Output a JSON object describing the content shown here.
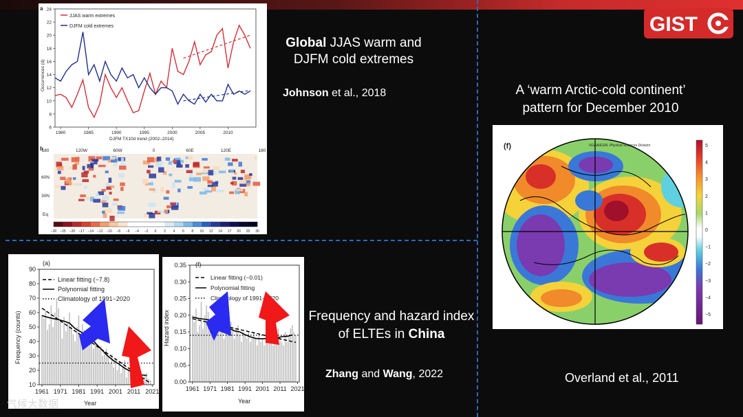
{
  "slide": {
    "title_bold": "Global",
    "title_rest": " JJAS warm and",
    "title_line2": "DJFM cold extremes",
    "cite1_bold": "Johnson",
    "cite1_rest": " et al., 2018",
    "arctic_line1": "A ‘warm Arctic-cold continent’",
    "arctic_line2": "pattern for December 2010",
    "china_line1": "Frequency and hazard index",
    "china_line2_pre": "of ELTEs in ",
    "china_line2_bold": "China",
    "cite2_bold1": "Zhang",
    "cite2_mid": " and ",
    "cite2_bold2": "Wang",
    "cite2_rest": ", 2022",
    "cite3": "Overland et al., 2011",
    "logo_text": "GIST",
    "watermark": "气候大数据"
  },
  "fig_a": {
    "panel_letter": "a",
    "legend": [
      "JJAS warm extremes",
      "DJFM cold extremes"
    ],
    "ylabel": "Occurrences (d)",
    "xlabel": "DJFM TX10d trend (2002–2014)",
    "colors": {
      "warm": "#d0303a",
      "cold": "#1f2f8a"
    }
  },
  "fig_b": {
    "panel_letter": "b",
    "top_ticks": [
      "180",
      "120W",
      "60W",
      "0",
      "60E",
      "120E",
      "180"
    ],
    "lat_ticks": [
      "60N",
      "30N",
      "Eq"
    ],
    "colorbar_ticks": [
      "−30",
      "−25",
      "−20",
      "−17",
      "−14",
      "−12",
      "−10",
      "−8",
      "−6",
      "−4",
      "−2",
      "0",
      "2",
      "4",
      "6",
      "8",
      "10",
      "12",
      "14",
      "17",
      "20",
      "25",
      "30"
    ]
  },
  "fig_f_map": {
    "panel_letter": "(f)",
    "header": "NOAA/ESRL Physical Sciences Division",
    "colorbar_ticks": [
      "5",
      "4",
      "3",
      "2",
      "1",
      "0",
      "−1",
      "−2",
      "−3",
      "−4",
      "−5"
    ]
  },
  "fig_freq": {
    "panel_letter": "(a)",
    "legend": [
      "Linear fitting (−7.8)",
      "Polynomial fitting",
      "Climatology of 1991−2020"
    ],
    "ylabel": "Frequency (counts)",
    "xlabel": "Year"
  },
  "fig_hazard": {
    "panel_letter": "(f)",
    "legend": [
      "Linear fitting (−0.01)",
      "Polynomial fitting",
      "Climatology of 1991−2020"
    ],
    "ylabel": "Hazard index",
    "xlabel": "Year"
  },
  "chart_data": [
    {
      "type": "line",
      "x": [
        1979,
        1980,
        1981,
        1982,
        1983,
        1984,
        1985,
        1986,
        1987,
        1988,
        1989,
        1990,
        1991,
        1992,
        1993,
        1994,
        1995,
        1996,
        1997,
        1998,
        1999,
        2000,
        2001,
        2002,
        2003,
        2004,
        2005,
        2006,
        2007,
        2008,
        2009,
        2010,
        2011,
        2012,
        2013,
        2014
      ],
      "series": [
        {
          "name": "JJAS warm extremes",
          "values": [
            10.8,
            11,
            10.5,
            9,
            11,
            13.2,
            9,
            7.5,
            9.5,
            14,
            12,
            10.5,
            12,
            10,
            8.2,
            8.5,
            11.5,
            14.2,
            11,
            13,
            12,
            18,
            14.5,
            14,
            16,
            19,
            15.5,
            17,
            17.5,
            20,
            21,
            15,
            19,
            21.5,
            20,
            18
          ]
        },
        {
          "name": "DJFM cold extremes",
          "values": [
            13.5,
            13,
            14.5,
            15.5,
            16,
            20.5,
            14,
            15.5,
            13,
            16,
            14,
            13,
            15,
            13.5,
            14,
            12,
            13.5,
            12,
            11,
            12,
            12,
            11.5,
            9.5,
            11,
            10,
            9.5,
            11,
            9.8,
            11,
            10,
            10,
            12.5,
            11,
            11.5,
            11,
            11.5
          ]
        }
      ],
      "xticks": [
        1980,
        1985,
        1990,
        1995,
        2000,
        2005,
        2010
      ],
      "yticks": [
        6,
        8,
        10,
        12,
        14,
        16,
        18,
        20,
        22,
        24
      ],
      "xlim": [
        1979,
        2015
      ],
      "ylim": [
        6,
        24
      ]
    },
    {
      "type": "bar",
      "x": [
        1961,
        1962,
        1963,
        1964,
        1965,
        1966,
        1967,
        1968,
        1969,
        1970,
        1971,
        1972,
        1973,
        1974,
        1975,
        1976,
        1977,
        1978,
        1979,
        1980,
        1981,
        1982,
        1983,
        1984,
        1985,
        1986,
        1987,
        1988,
        1989,
        1990,
        1991,
        1992,
        1993,
        1994,
        1995,
        1996,
        1997,
        1998,
        1999,
        2000,
        2001,
        2002,
        2003,
        2004,
        2005,
        2006,
        2007,
        2008,
        2009,
        2010,
        2011,
        2012,
        2013,
        2014,
        2015,
        2016,
        2017,
        2018,
        2019,
        2020
      ],
      "values": [
        58,
        56,
        62,
        48,
        52,
        65,
        50,
        60,
        70,
        63,
        55,
        42,
        57,
        47,
        53,
        60,
        52,
        45,
        40,
        50,
        58,
        44,
        52,
        48,
        38,
        45,
        46,
        40,
        35,
        42,
        38,
        35,
        37,
        30,
        32,
        35,
        30,
        25,
        31,
        22,
        28,
        20,
        25,
        18,
        22,
        27,
        15,
        20,
        19,
        25,
        18,
        15,
        14,
        20,
        12,
        15,
        17,
        18,
        14,
        13
      ],
      "xticks": [
        1961,
        1971,
        1981,
        1991,
        2001,
        2011,
        2021
      ],
      "yticks": [
        10,
        20,
        30,
        40,
        50,
        60,
        70,
        80,
        90
      ],
      "ylim": [
        10,
        90
      ],
      "climatology": 25
    },
    {
      "type": "bar",
      "x": [
        1961,
        1962,
        1963,
        1964,
        1965,
        1966,
        1967,
        1968,
        1969,
        1970,
        1971,
        1972,
        1973,
        1974,
        1975,
        1976,
        1977,
        1978,
        1979,
        1980,
        1981,
        1982,
        1983,
        1984,
        1985,
        1986,
        1987,
        1988,
        1989,
        1990,
        1991,
        1992,
        1993,
        1994,
        1995,
        1996,
        1997,
        1998,
        1999,
        2000,
        2001,
        2002,
        2003,
        2004,
        2005,
        2006,
        2007,
        2008,
        2009,
        2010,
        2011,
        2012,
        2013,
        2014,
        2015,
        2016,
        2017,
        2018,
        2019,
        2020
      ],
      "values": [
        0.2,
        0.18,
        0.22,
        0.15,
        0.17,
        0.24,
        0.16,
        0.2,
        0.23,
        0.21,
        0.19,
        0.14,
        0.2,
        0.16,
        0.18,
        0.22,
        0.17,
        0.15,
        0.13,
        0.17,
        0.2,
        0.15,
        0.18,
        0.16,
        0.13,
        0.16,
        0.17,
        0.14,
        0.12,
        0.15,
        0.14,
        0.13,
        0.15,
        0.12,
        0.13,
        0.15,
        0.13,
        0.11,
        0.14,
        0.12,
        0.13,
        0.11,
        0.14,
        0.12,
        0.13,
        0.15,
        0.11,
        0.13,
        0.12,
        0.16,
        0.13,
        0.12,
        0.11,
        0.15,
        0.12,
        0.14,
        0.16,
        0.17,
        0.15,
        0.14
      ],
      "xticks": [
        1961,
        1971,
        1981,
        1991,
        2001,
        2011,
        2021
      ],
      "yticks": [
        0.0,
        0.05,
        0.1,
        0.15,
        0.2,
        0.25,
        0.3,
        0.35
      ],
      "ylim": [
        0,
        0.35
      ],
      "climatology": 0.14
    }
  ]
}
